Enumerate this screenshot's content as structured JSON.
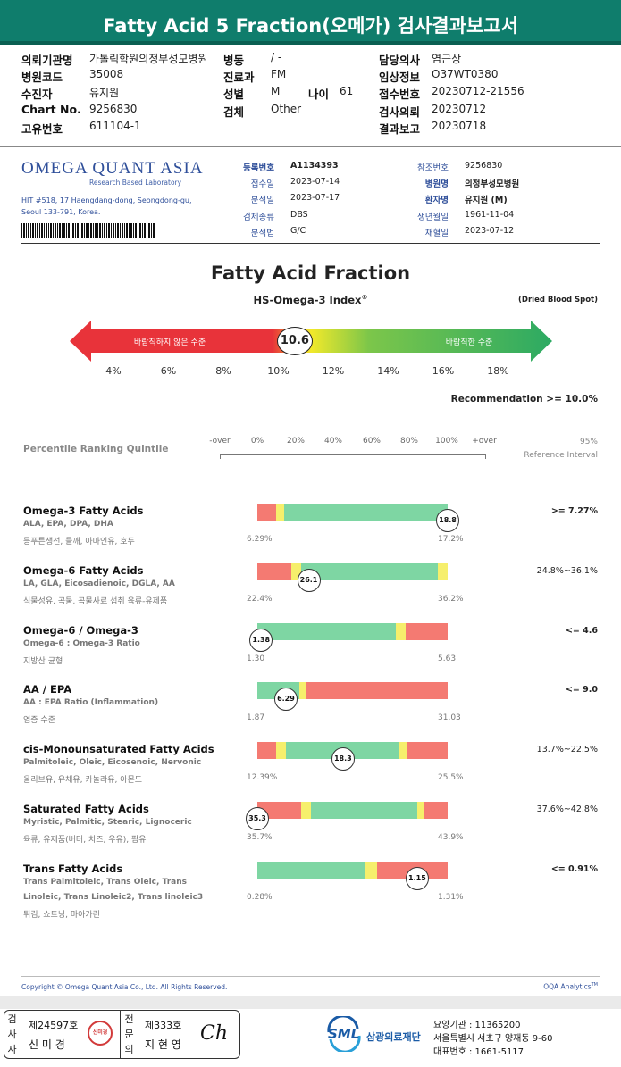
{
  "header": {
    "title": "Fatty Acid 5 Fraction(오메가) 검사결과보고서"
  },
  "info": {
    "left": [
      {
        "label": "의뢰기관명",
        "value": "가톨릭학원의정부성모병원"
      },
      {
        "label": "병원코드",
        "value": "35008"
      },
      {
        "label": "수진자",
        "value": "유지원"
      },
      {
        "label": "Chart No.",
        "value": "9256830"
      },
      {
        "label": "고유번호",
        "value": "611104-1"
      }
    ],
    "middle": [
      {
        "label": "병동",
        "value": "/ -"
      },
      {
        "label": "진료과",
        "value": "FM"
      },
      {
        "label": "성별",
        "value": "M"
      },
      {
        "label": "검체",
        "value": "Other"
      }
    ],
    "age": {
      "label": "나이",
      "value": "61"
    },
    "right": [
      {
        "label": "담당의사",
        "value": "염근상"
      },
      {
        "label": "임상정보",
        "value": "O37WT0380"
      },
      {
        "label": "접수번호",
        "value": "20230712-21556"
      },
      {
        "label": "검사의뢰",
        "value": "20230712"
      },
      {
        "label": "결과보고",
        "value": "20230718"
      }
    ]
  },
  "lab": {
    "name": "OMEGA QUANT ASIA",
    "tagline": "Research Based Laboratory",
    "address1": "HIT #518, 17 Haengdang-dong, Seongdong-gu,",
    "address2": "Seoul 133-791, Korea.",
    "details_left": [
      {
        "label": "등록번호",
        "value": "A1134393"
      },
      {
        "label": "접수일",
        "value": "2023-07-14"
      },
      {
        "label": "분석일",
        "value": "2023-07-17"
      },
      {
        "label": "검체종류",
        "value": "DBS"
      },
      {
        "label": "분석법",
        "value": "G/C"
      }
    ],
    "details_right": [
      {
        "label": "참조번호",
        "value": "9256830"
      },
      {
        "label": "병원명",
        "value": "의정부성모병원"
      },
      {
        "label": "환자명",
        "value": "유지원 (M)"
      },
      {
        "label": "생년월일",
        "value": "1961-11-04"
      },
      {
        "label": "채혈일",
        "value": "2023-07-12"
      }
    ]
  },
  "report": {
    "title": "Fatty Acid Fraction",
    "index_title": "HS-Omega-3 Index",
    "index_reg": "®",
    "sample_type": "(Dried Blood Spot)",
    "value": "10.6",
    "value_num": 10.6,
    "bad_label": "바람직하지 않은 수준",
    "good_label": "바람직한 수준",
    "ticks": [
      "4%",
      "6%",
      "8%",
      "10%",
      "12%",
      "14%",
      "16%",
      "18%"
    ],
    "recommendation": "Recommendation  >= 10.0%"
  },
  "percentile": {
    "title": "Percentile Ranking Quintile",
    "scale": [
      "-over",
      "0%",
      "20%",
      "40%",
      "60%",
      "80%",
      "100%",
      "+over"
    ],
    "ref_title1": "95%",
    "ref_title2": "Reference Interval"
  },
  "items": [
    {
      "title": "Omega-3 Fatty Acids",
      "sub": "ALA, EPA, DPA, DHA",
      "food": "등푸른생선, 들깨, 아마인유, 호두",
      "sub2": "",
      "min": "6.29%",
      "max": "17.2%",
      "value": "18.8",
      "pos": 1.0,
      "ref": ">= 7.27%",
      "segments": [
        {
          "c": "#f47a72",
          "f": 0,
          "t": 0.1
        },
        {
          "c": "#f6ef6c",
          "f": 0.1,
          "t": 0.14
        },
        {
          "c": "#7ed6a3",
          "f": 0.14,
          "t": 1.0
        }
      ]
    },
    {
      "title": "Omega-6 Fatty Acids",
      "sub": "LA, GLA, Eicosadienoic, DGLA, AA",
      "food": "식물성유, 곡물, 곡물사료 섭취 육류-유제품",
      "sub2": "",
      "min": "22.4%",
      "max": "36.2%",
      "value": "26.1",
      "pos": 0.27,
      "ref": "24.8%~36.1%",
      "segments": [
        {
          "c": "#f47a72",
          "f": 0,
          "t": 0.18
        },
        {
          "c": "#f6ef6c",
          "f": 0.18,
          "t": 0.23
        },
        {
          "c": "#7ed6a3",
          "f": 0.23,
          "t": 0.95
        },
        {
          "c": "#f6ef6c",
          "f": 0.95,
          "t": 1.0
        }
      ]
    },
    {
      "title": "Omega-6 / Omega-3",
      "sub": "Omega-6 : Omega-3 Ratio",
      "food": "지방산 균형",
      "sub2": "",
      "min": "1.30",
      "max": "5.63",
      "value": "1.38",
      "pos": 0.02,
      "ref": "<= 4.6",
      "segments": [
        {
          "c": "#7ed6a3",
          "f": 0,
          "t": 0.73
        },
        {
          "c": "#f6ef6c",
          "f": 0.73,
          "t": 0.78
        },
        {
          "c": "#f47a72",
          "f": 0.78,
          "t": 1.0
        }
      ]
    },
    {
      "title": "AA / EPA",
      "sub": "AA : EPA Ratio (Inflammation)",
      "food": "염증 수준",
      "sub2": "",
      "min": "1.87",
      "max": "31.03",
      "value": "6.29",
      "pos": 0.15,
      "ref": "<= 9.0",
      "segments": [
        {
          "c": "#7ed6a3",
          "f": 0,
          "t": 0.22
        },
        {
          "c": "#f6ef6c",
          "f": 0.22,
          "t": 0.26
        },
        {
          "c": "#f47a72",
          "f": 0.26,
          "t": 1.0
        }
      ]
    },
    {
      "title": "cis-Monounsaturated Fatty Acids",
      "sub": "Palmitoleic, Oleic, Eicosenoic, Nervonic",
      "food": "올리브유, 유채유, 카놀라유, 아몬드",
      "sub2": "",
      "min": "12.39%",
      "max": "25.5%",
      "value": "18.3",
      "pos": 0.45,
      "ref": "13.7%~22.5%",
      "segments": [
        {
          "c": "#f47a72",
          "f": 0,
          "t": 0.1
        },
        {
          "c": "#f6ef6c",
          "f": 0.1,
          "t": 0.15
        },
        {
          "c": "#7ed6a3",
          "f": 0.15,
          "t": 0.74
        },
        {
          "c": "#f6ef6c",
          "f": 0.74,
          "t": 0.79
        },
        {
          "c": "#f47a72",
          "f": 0.79,
          "t": 1.0
        }
      ]
    },
    {
      "title": "Saturated Fatty Acids",
      "sub": "Myristic, Palmitic, Stearic, Lignoceric",
      "food": "육류, 유제품(버터, 치즈, 우유), 팜유",
      "sub2": "",
      "min": "35.7%",
      "max": "43.9%",
      "value": "35.3",
      "pos": 0.0,
      "ref": "37.6%~42.8%",
      "segments": [
        {
          "c": "#f47a72",
          "f": 0,
          "t": 0.23
        },
        {
          "c": "#f6ef6c",
          "f": 0.23,
          "t": 0.28
        },
        {
          "c": "#7ed6a3",
          "f": 0.28,
          "t": 0.84
        },
        {
          "c": "#f6ef6c",
          "f": 0.84,
          "t": 0.88
        },
        {
          "c": "#f47a72",
          "f": 0.88,
          "t": 1.0
        }
      ]
    },
    {
      "title": "Trans Fatty Acids",
      "sub": "Trans Palmitoleic, Trans Oleic, Trans",
      "food": "튀김, 쇼트닝, 마아가린",
      "sub2": "Linoleic, Trans Linoleic2, Trans linoleic3",
      "min": "0.28%",
      "max": "1.31%",
      "value": "1.15",
      "pos": 0.84,
      "ref": "<= 0.91%",
      "segments": [
        {
          "c": "#7ed6a3",
          "f": 0,
          "t": 0.57
        },
        {
          "c": "#f6ef6c",
          "f": 0.57,
          "t": 0.63
        },
        {
          "c": "#f47a72",
          "f": 0.63,
          "t": 1.0
        }
      ]
    }
  ],
  "footer": {
    "copyright": "Copyright © Omega Quant Asia Co., Ltd.  All Rights Reserved.",
    "analytics": "OQA Analytics",
    "analytics_tm": "TM"
  },
  "sign": {
    "label1": "검사자",
    "license1": "제24597호",
    "name1": "신 미 경",
    "stamp": "신미경",
    "label2": "전문의",
    "license2": "제333호",
    "name2": "지 현 영",
    "signature": "Ch"
  },
  "sml": {
    "logo": "SML",
    "name": "삼광의료재단",
    "line1": "요양기관 : 11365200",
    "line2": "서울특별시 서초구 양재동 9-60",
    "line3": "대표번호 : 1661-5117"
  }
}
